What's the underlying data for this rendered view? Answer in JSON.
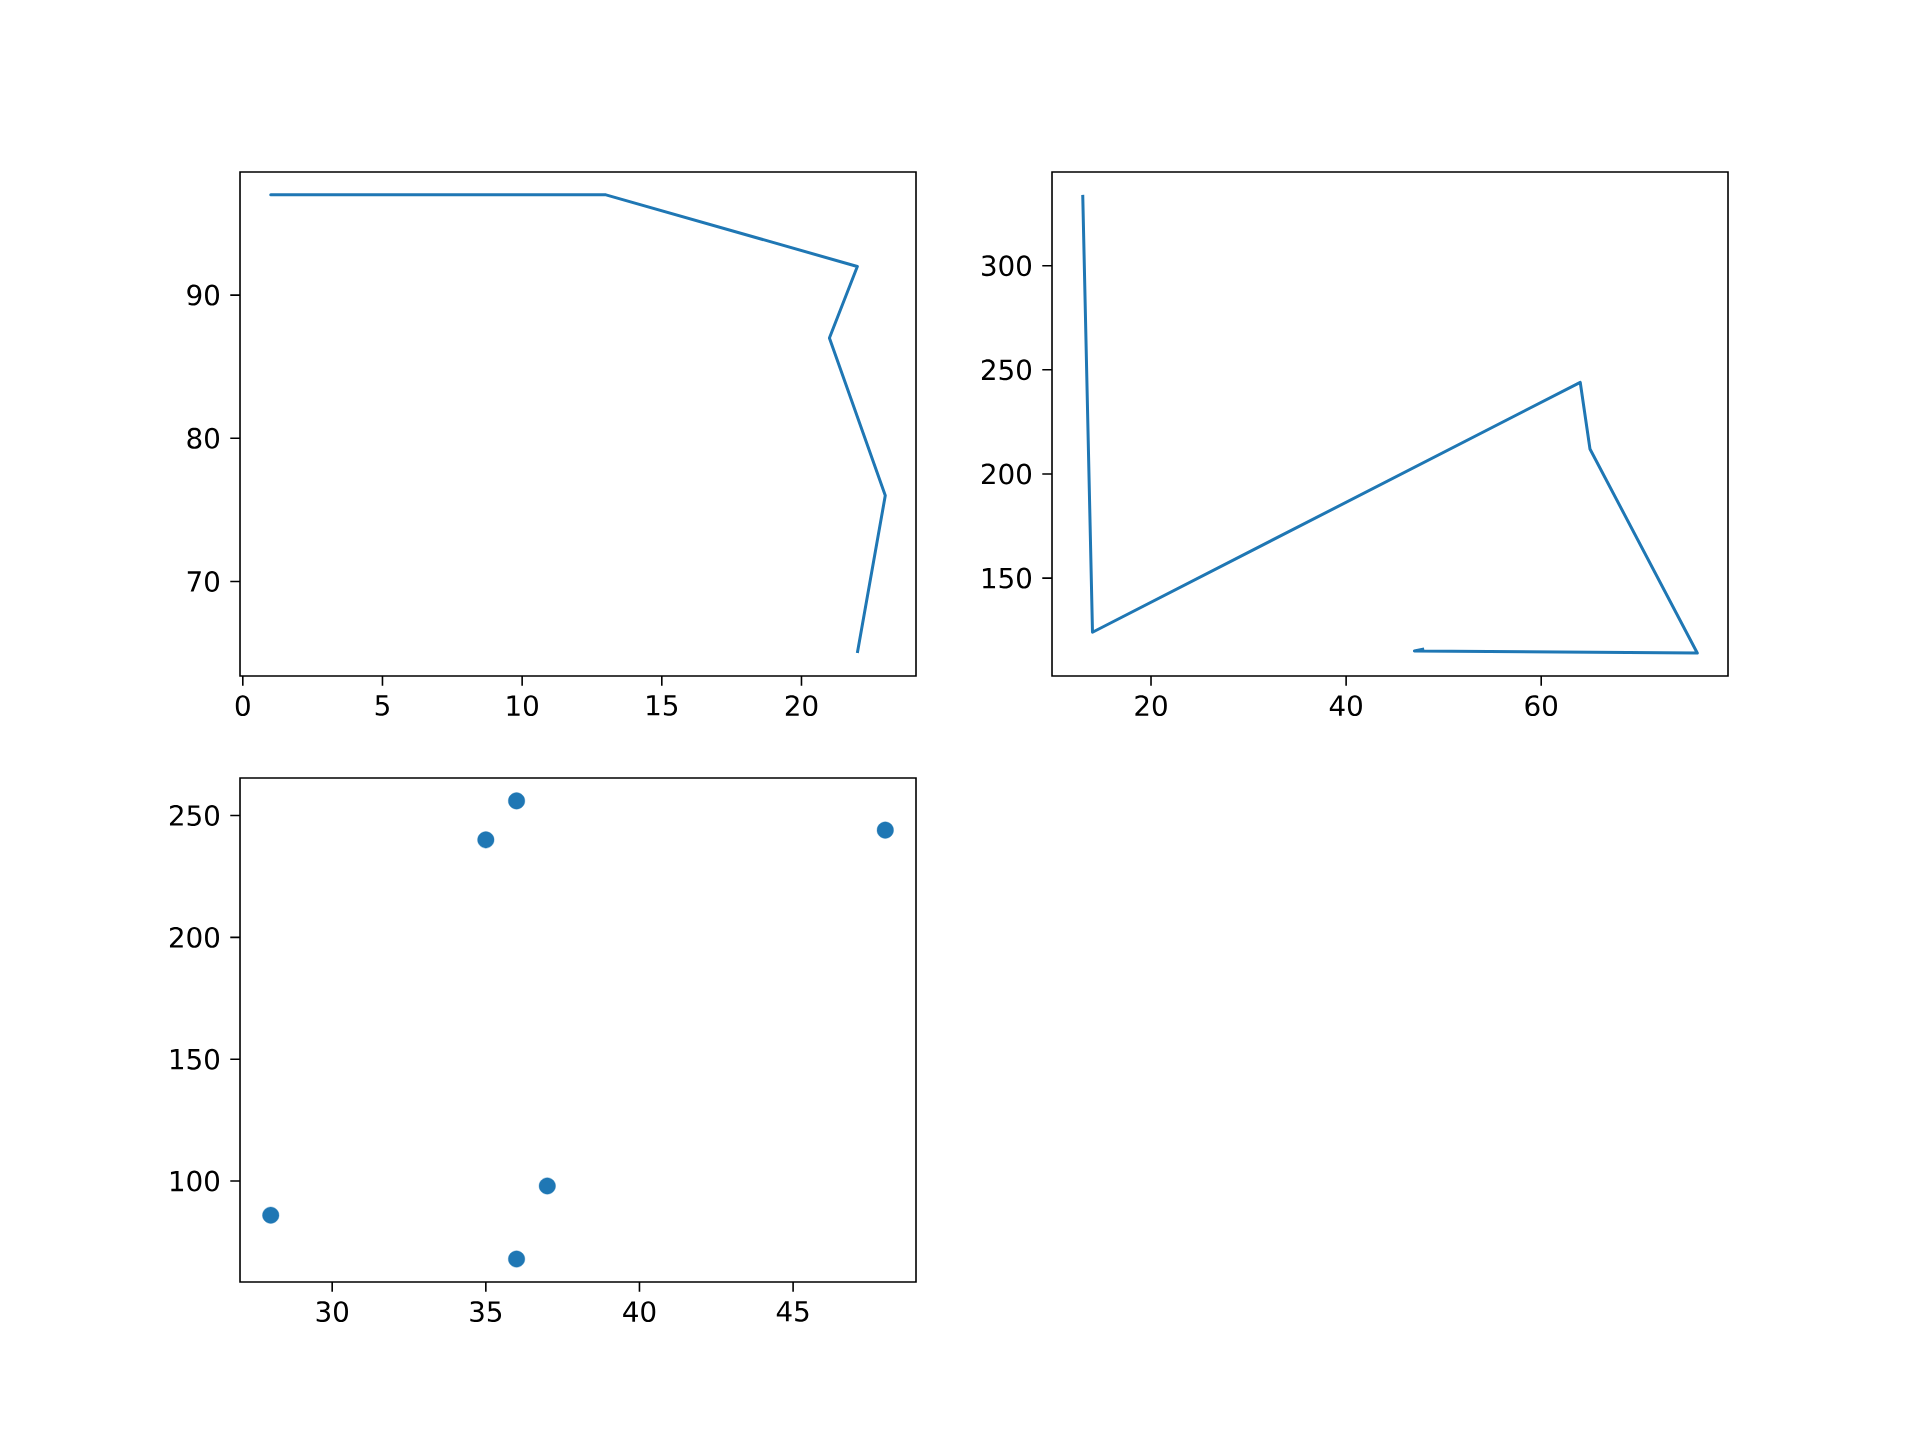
{
  "chart_data": [
    {
      "type": "line",
      "x": [
        3,
        1,
        13,
        22,
        21,
        23,
        22
      ],
      "values": [
        97,
        97,
        97,
        92,
        87,
        76,
        65
      ],
      "color": "#1f77b4",
      "marker": "none",
      "xlim": [
        -0.1,
        24.1
      ],
      "ylim": [
        63.4,
        98.6
      ],
      "xticks": [
        0,
        5,
        10,
        15,
        20
      ],
      "yticks": [
        70,
        80,
        90
      ]
    },
    {
      "type": "line",
      "x": [
        13,
        14,
        64,
        65,
        76,
        47,
        48
      ],
      "values": [
        334,
        124,
        244,
        212,
        114,
        115,
        116
      ],
      "color": "#1f77b4",
      "marker": "none",
      "xlim": [
        9.85,
        79.15
      ],
      "ylim": [
        103,
        345
      ],
      "xticks": [
        20,
        40,
        60
      ],
      "yticks": [
        150,
        200,
        250,
        300
      ]
    },
    {
      "type": "scatter",
      "x": [
        28,
        35,
        36,
        36,
        37,
        48
      ],
      "values": [
        86,
        240,
        256,
        68,
        98,
        244
      ],
      "color": "#1f77b4",
      "marker": "circle",
      "xlim": [
        27,
        49
      ],
      "ylim": [
        58.6,
        265.4
      ],
      "xticks": [
        30,
        35,
        40,
        45
      ],
      "yticks": [
        100,
        150,
        200,
        250
      ]
    }
  ]
}
